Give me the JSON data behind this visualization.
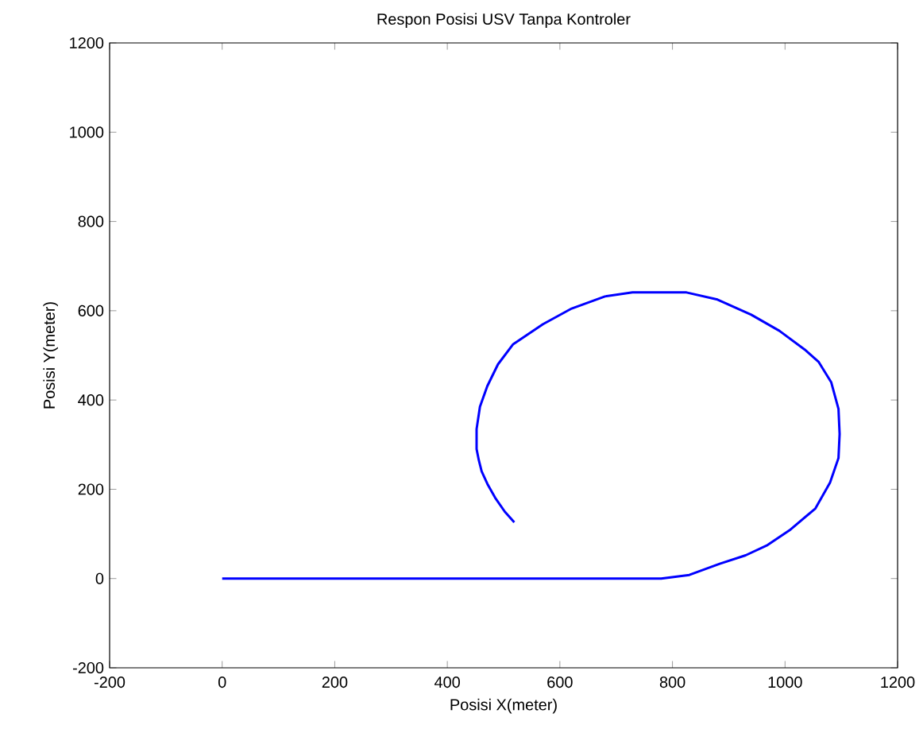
{
  "chart_data": {
    "type": "line",
    "title": "Respon Posisi USV Tanpa Kontroler",
    "xlabel": "Posisi X(meter)",
    "ylabel": "Posisi Y(meter)",
    "xlim": [
      -200,
      1200
    ],
    "ylim": [
      -200,
      1200
    ],
    "xticks": [
      -200,
      0,
      200,
      400,
      600,
      800,
      1000,
      1200
    ],
    "yticks": [
      -200,
      0,
      200,
      400,
      600,
      800,
      1000,
      1200
    ],
    "grid": false,
    "series": [
      {
        "color": "#0000ff",
        "x": [
          0,
          780,
          830,
          884,
          930,
          969,
          1010,
          1054,
          1080,
          1095,
          1097,
          1095,
          1082,
          1060,
          1035,
          990,
          940,
          880,
          825,
          729,
          680,
          621,
          570,
          517,
          490,
          471,
          458,
          452,
          452,
          456,
          461,
          472,
          485,
          502,
          519
        ],
        "values": [
          0,
          0,
          8,
          33,
          52,
          75,
          110,
          157,
          215,
          270,
          324,
          380,
          440,
          485,
          513,
          555,
          591,
          625,
          641,
          641,
          632,
          605,
          570,
          525,
          480,
          431,
          385,
          335,
          290,
          265,
          240,
          210,
          181,
          150,
          126
        ]
      }
    ]
  }
}
